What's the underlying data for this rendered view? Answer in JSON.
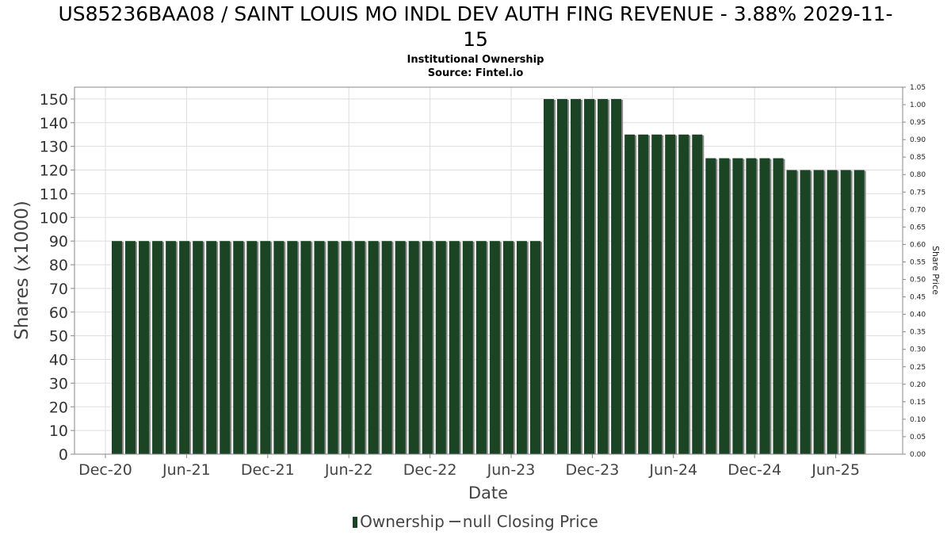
{
  "header": {
    "title_line1": "US85236BAA08 / SAINT LOUIS MO INDL DEV AUTH FING REVENUE - 3.88% 2029-11-",
    "title_line2": "15",
    "subtitle1": "Institutional Ownership",
    "subtitle2": "Source: Fintel.io"
  },
  "legend": {
    "ownership_label": "Ownership",
    "price_label": "null Closing Price"
  },
  "colors": {
    "bar": "#1b4425",
    "bar_shadow": "#8a8a8a",
    "grid": "#dddddd",
    "axis": "#888888"
  },
  "chart_data": {
    "type": "bar",
    "xlabel": "Date",
    "ylabel": "Shares (x1000)",
    "y2label": "Share Price",
    "ylim": [
      0,
      155
    ],
    "y_ticks": [
      0,
      10,
      20,
      30,
      40,
      50,
      60,
      70,
      80,
      90,
      100,
      110,
      120,
      130,
      140,
      150
    ],
    "y2lim": [
      0,
      1.05
    ],
    "y2_ticks": [
      "0.00",
      "0.05",
      "0.10",
      "0.15",
      "0.20",
      "0.25",
      "0.30",
      "0.35",
      "0.40",
      "0.45",
      "0.50",
      "0.55",
      "0.60",
      "0.65",
      "0.70",
      "0.75",
      "0.80",
      "0.85",
      "0.90",
      "0.95",
      "1.00",
      "1.05"
    ],
    "x_tick_labels": [
      "Dec-20",
      "Jun-21",
      "Dec-21",
      "Jun-22",
      "Dec-22",
      "Jun-23",
      "Dec-23",
      "Jun-24",
      "Dec-24",
      "Jun-25"
    ],
    "grid": true,
    "legend_position": "bottom",
    "series": [
      {
        "name": "Ownership",
        "values": [
          90,
          90,
          90,
          90,
          90,
          90,
          90,
          90,
          90,
          90,
          90,
          90,
          90,
          90,
          90,
          90,
          90,
          90,
          90,
          90,
          90,
          90,
          90,
          90,
          90,
          90,
          90,
          90,
          90,
          90,
          90,
          90,
          150,
          150,
          150,
          150,
          150,
          150,
          135,
          135,
          135,
          135,
          135,
          135,
          125,
          125,
          125,
          125,
          125,
          125,
          120,
          120,
          120,
          120,
          120,
          120
        ]
      }
    ]
  }
}
